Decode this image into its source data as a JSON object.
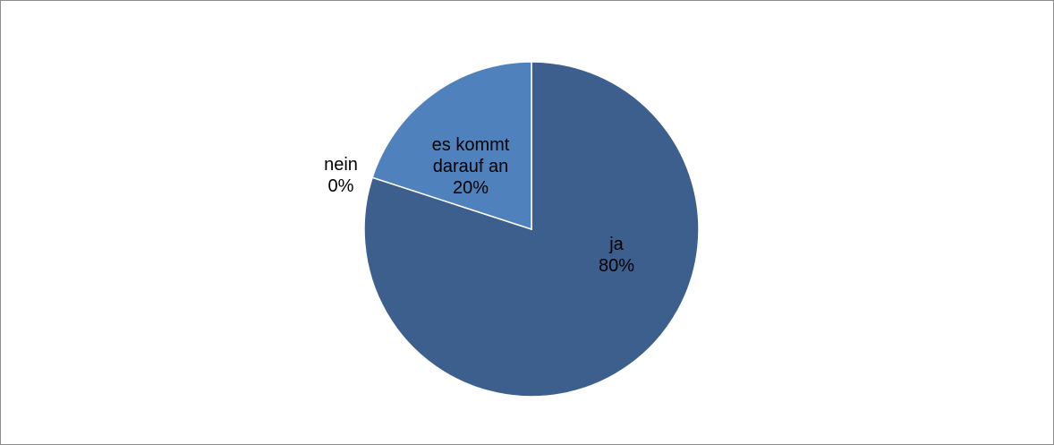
{
  "chart_data": {
    "type": "pie",
    "categories": [
      "ja",
      "nein",
      "es kommt darauf an"
    ],
    "values": [
      80,
      0,
      20
    ],
    "value_labels": [
      "80%",
      "0%",
      "20%"
    ],
    "colors": [
      "#3c5f8d",
      "#a9423f",
      "#4f81bd"
    ]
  }
}
